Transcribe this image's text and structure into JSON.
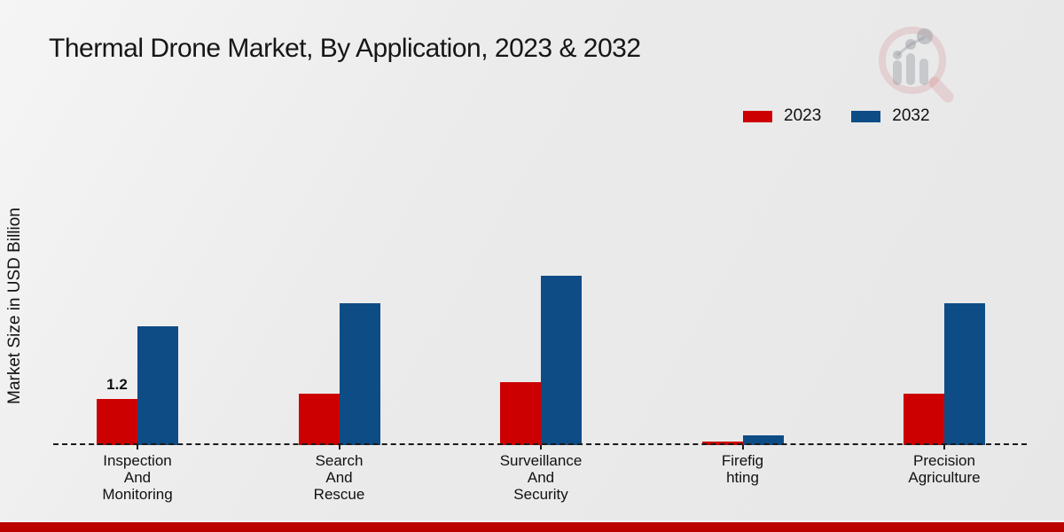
{
  "chart_data": {
    "type": "bar",
    "title": "Thermal Drone Market, By Application, 2023 & 2032",
    "xlabel": "",
    "ylabel": "Market Size in USD Billion",
    "legend_position": "top-right",
    "grid": false,
    "categories": [
      "Inspection And Monitoring",
      "Search And Rescue",
      "Surveillance And Security",
      "Firefighting",
      "Precision Agriculture"
    ],
    "category_label_lines": [
      [
        "Inspection",
        "And",
        "Monitoring"
      ],
      [
        "Search",
        "And",
        "Rescue"
      ],
      [
        "Surveillance",
        "And",
        "Security"
      ],
      [
        "Firefig",
        "hting"
      ],
      [
        "Precision",
        "Agriculture"
      ]
    ],
    "series": [
      {
        "name": "2023",
        "color": "#cc0000",
        "values": [
          1.2,
          1.35,
          1.65,
          0.1,
          1.35
        ]
      },
      {
        "name": "2032",
        "color": "#0e4c86",
        "values": [
          3.1,
          3.7,
          4.4,
          0.25,
          3.7
        ]
      }
    ],
    "annotations": [
      {
        "category_index": 0,
        "series_index": 0,
        "text": "1.2"
      }
    ]
  },
  "footer": {
    "accent_color": "#bb0000"
  },
  "watermark": {
    "name": "market-research-logo"
  }
}
